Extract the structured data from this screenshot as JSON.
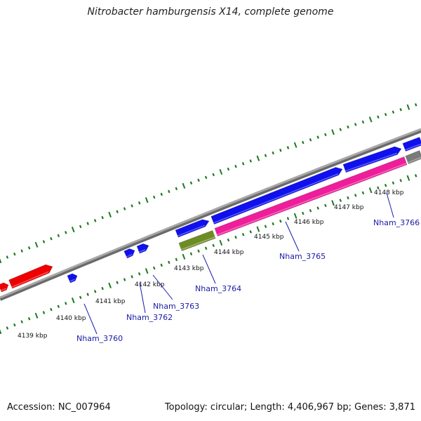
{
  "title": "Nitrobacter hamburgensis X14, complete genome",
  "footer": {
    "accession": "Accession: NC_007964",
    "stats": "Topology: circular; Length: 4,406,967 bp; Genes: 3,871"
  },
  "colors": {
    "backbone": "#8c8c8c",
    "tick": "#1e7a1e",
    "label_line": "#1a1aa8",
    "gene_red": "#ee0000",
    "gene_blue": "#1010ee",
    "gene_magenta": "#ee1e9a",
    "gene_olive": "#6e8c24",
    "gene_gray": "#7a7a7a"
  },
  "scale_labels": [
    "4139 kbp",
    "4140 kbp",
    "4141 kbp",
    "4142 kbp",
    "4143 kbp",
    "4144 kbp",
    "4145 kbp",
    "4146 kbp",
    "4147 kbp",
    "4148 kbp"
  ],
  "gene_labels": [
    "Nham_3760",
    "Nham_3762",
    "Nham_3763",
    "Nham_3764",
    "Nham_3765",
    "Nham_3766"
  ]
}
